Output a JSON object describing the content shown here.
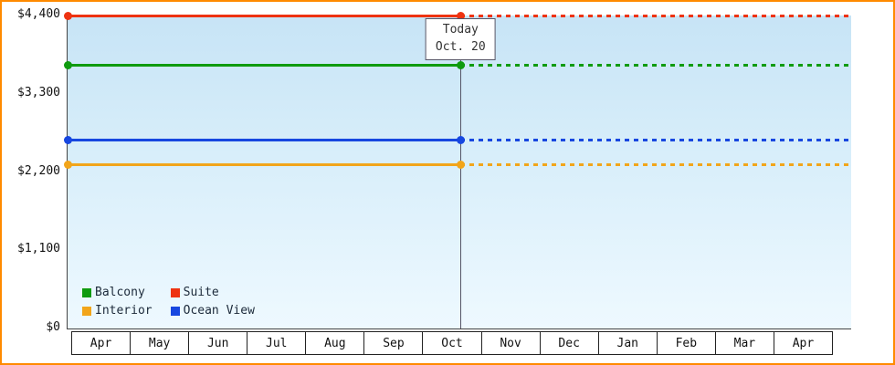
{
  "chart_data": {
    "type": "line",
    "title": "",
    "xlabel": "",
    "ylabel": "",
    "ylim": [
      0,
      4400
    ],
    "grid": false,
    "legend_position": "bottom-left-inside",
    "x_categories": [
      "Apr",
      "May",
      "Jun",
      "Jul",
      "Aug",
      "Sep",
      "Oct",
      "Nov",
      "Dec",
      "Jan",
      "Feb",
      "Mar",
      "Apr"
    ],
    "y_ticks": [
      {
        "value": 0,
        "label": "$0"
      },
      {
        "value": 1100,
        "label": "$1,100"
      },
      {
        "value": 2200,
        "label": "$2,200"
      },
      {
        "value": 3300,
        "label": "$3,300"
      },
      {
        "value": 4400,
        "label": "$4,400"
      }
    ],
    "series": [
      {
        "name": "Suite",
        "value": 4400,
        "color": "#ee3311",
        "style_before_today": "solid",
        "style_after_today": "dotted"
      },
      {
        "name": "Balcony",
        "value": 3700,
        "color": "#0f9b0f",
        "style_before_today": "solid",
        "style_after_today": "dotted"
      },
      {
        "name": "Ocean View",
        "value": 2650,
        "color": "#1747e0",
        "style_before_today": "solid",
        "style_after_today": "dotted"
      },
      {
        "name": "Interior",
        "value": 2300,
        "color": "#f2a51a",
        "style_before_today": "solid",
        "style_after_today": "dotted"
      }
    ],
    "today": {
      "line1": "Today",
      "line2": "Oct. 20",
      "month": "Oct",
      "day": 20
    },
    "legend": [
      {
        "label": "Balcony",
        "color": "#0f9b0f"
      },
      {
        "label": "Suite",
        "color": "#ee3311"
      },
      {
        "label": "Interior",
        "color": "#f2a51a"
      },
      {
        "label": "Ocean View",
        "color": "#1747e0"
      }
    ]
  },
  "colors": {
    "frame_border": "#ff8a00",
    "plot_background_top": "#c7e4f6",
    "plot_background_bottom": "#eef9ff",
    "axis": "#444444",
    "today_marker": "#555566"
  }
}
